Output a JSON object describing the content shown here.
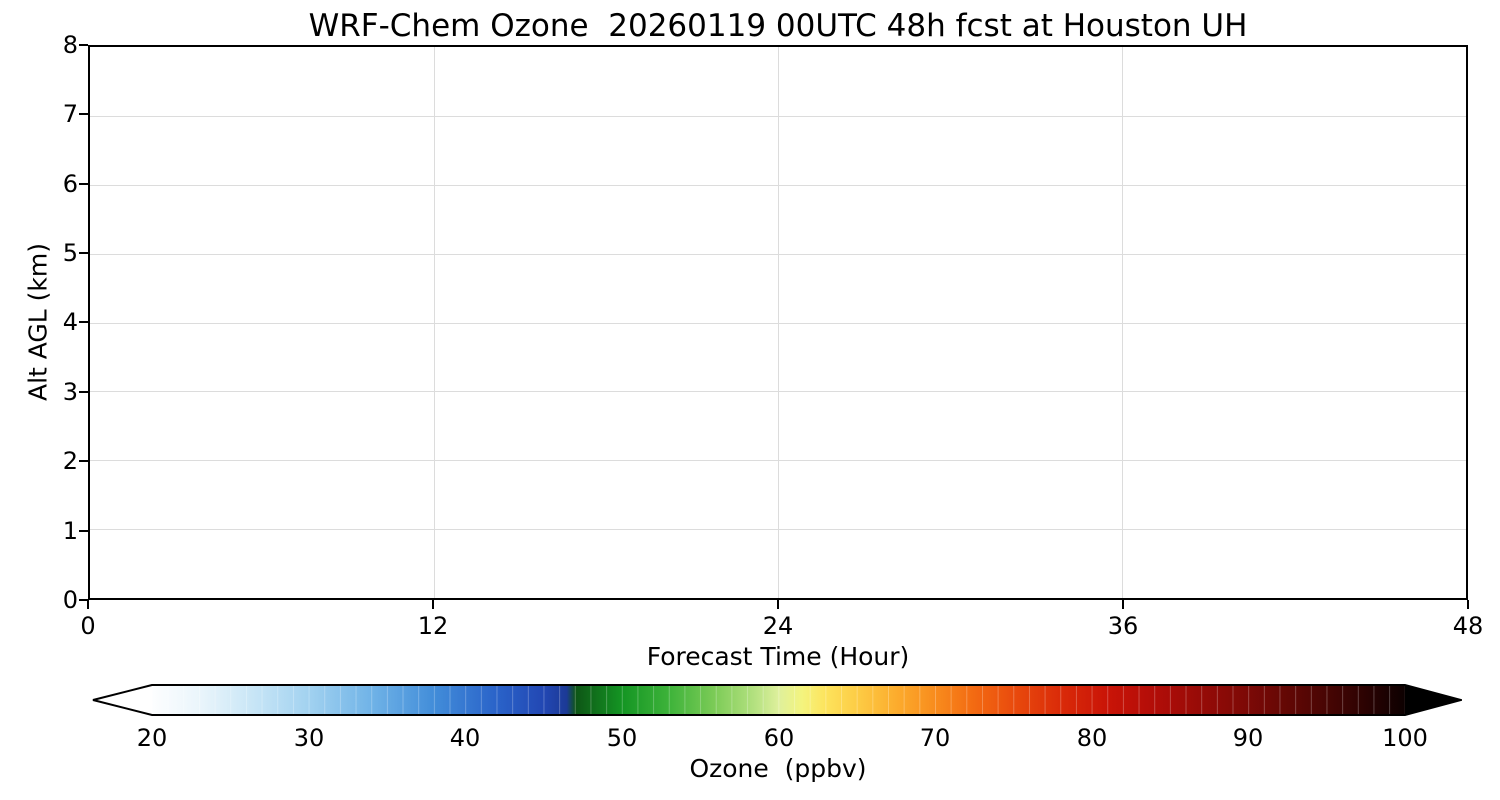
{
  "figure": {
    "background": "#ffffff",
    "title": "WRF-Chem Ozone  20260119 00UTC 48h fcst at Houston UH"
  },
  "axes": {
    "xlabel": "Forecast Time (Hour)",
    "ylabel": "Alt AGL (km)",
    "x_ticks": [
      "0",
      "12",
      "24",
      "36",
      "48"
    ],
    "y_ticks": [
      "0",
      "1",
      "2",
      "3",
      "4",
      "5",
      "6",
      "7",
      "8"
    ],
    "grid_color": "#dcdcdc",
    "spine_color": "#000000"
  },
  "colorbar": {
    "label": "Ozone  (ppbv)",
    "ticks": [
      "20",
      "30",
      "40",
      "50",
      "60",
      "70",
      "80",
      "90",
      "100"
    ],
    "extend_left_color": "#ffffff",
    "extend_right_color": "#000000",
    "outline_color": "#000000",
    "gradient": [
      {
        "at": 0,
        "color": "#fdfeff"
      },
      {
        "at": 3.8,
        "color": "#eaf5fb"
      },
      {
        "at": 7.5,
        "color": "#cde8f7"
      },
      {
        "at": 12.5,
        "color": "#a2d2f0"
      },
      {
        "at": 17.5,
        "color": "#70b3e7"
      },
      {
        "at": 22.5,
        "color": "#428dd9"
      },
      {
        "at": 27.5,
        "color": "#2a63c9"
      },
      {
        "at": 31.3,
        "color": "#2247b3"
      },
      {
        "at": 33.1,
        "color": "#1c3a96"
      },
      {
        "at": 33.8,
        "color": "#0e5516"
      },
      {
        "at": 37.5,
        "color": "#149523"
      },
      {
        "at": 41.3,
        "color": "#3eb33a"
      },
      {
        "at": 45,
        "color": "#7ecc58"
      },
      {
        "at": 48.1,
        "color": "#b4e180"
      },
      {
        "at": 50,
        "color": "#def09c"
      },
      {
        "at": 51.9,
        "color": "#f4f47e"
      },
      {
        "at": 53.8,
        "color": "#fde35c"
      },
      {
        "at": 56.3,
        "color": "#fdcc45"
      },
      {
        "at": 59.4,
        "color": "#fcac2d"
      },
      {
        "at": 62.5,
        "color": "#f88c1d"
      },
      {
        "at": 65.6,
        "color": "#f36a12"
      },
      {
        "at": 68.8,
        "color": "#e94b0d"
      },
      {
        "at": 72.5,
        "color": "#da2b09"
      },
      {
        "at": 76.3,
        "color": "#c91407"
      },
      {
        "at": 80,
        "color": "#b20d08"
      },
      {
        "at": 83.8,
        "color": "#960b07"
      },
      {
        "at": 87.5,
        "color": "#7c0906"
      },
      {
        "at": 91.3,
        "color": "#5d0704"
      },
      {
        "at": 95,
        "color": "#3d0403"
      },
      {
        "at": 97.5,
        "color": "#250202"
      },
      {
        "at": 100,
        "color": "#0d0101"
      }
    ]
  },
  "chart_data": {
    "type": "heatmap",
    "title": "WRF-Chem Ozone  20260119 00UTC 48h fcst at Houston UH",
    "xlabel": "Forecast Time (Hour)",
    "ylabel": "Alt AGL (km)",
    "xlim": [
      0,
      48
    ],
    "ylim": [
      0,
      8
    ],
    "x_ticks": [
      0,
      12,
      24,
      36,
      48
    ],
    "y_ticks": [
      0,
      1,
      2,
      3,
      4,
      5,
      6,
      7,
      8
    ],
    "grid": true,
    "legend_position": "none",
    "series": [],
    "colorbar": {
      "label": "Ozone  (ppbv)",
      "orientation": "horizontal",
      "range": [
        20,
        100
      ],
      "ticks": [
        20,
        30,
        40,
        50,
        60,
        70,
        80,
        90,
        100
      ],
      "extend": "both"
    }
  }
}
